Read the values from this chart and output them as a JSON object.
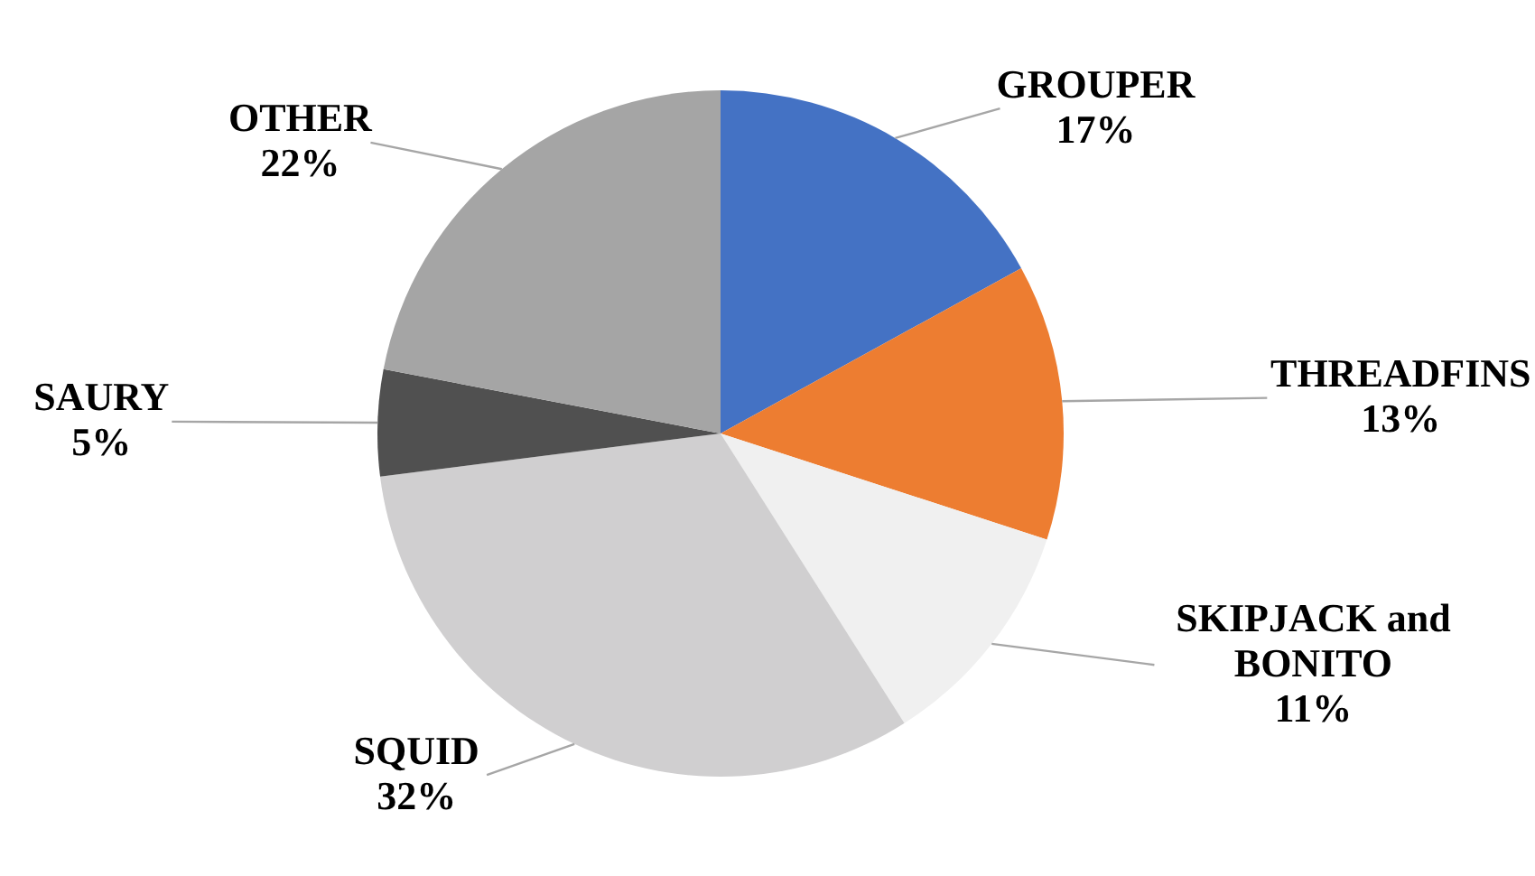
{
  "chart_data": {
    "type": "pie",
    "categories": [
      "GROUPER",
      "THREADFINS",
      "SKIPJACK and BONITO",
      "SQUID",
      "SAURY",
      "OTHER"
    ],
    "values": [
      17,
      13,
      11,
      32,
      5,
      22
    ],
    "colors": [
      "#4472c4",
      "#ed7d31",
      "#f0f0f0",
      "#d0cfd0",
      "#505050",
      "#a5a5a5"
    ],
    "value_labels": [
      "17%",
      "13%",
      "11%",
      "32%",
      "5%",
      "22%"
    ]
  }
}
